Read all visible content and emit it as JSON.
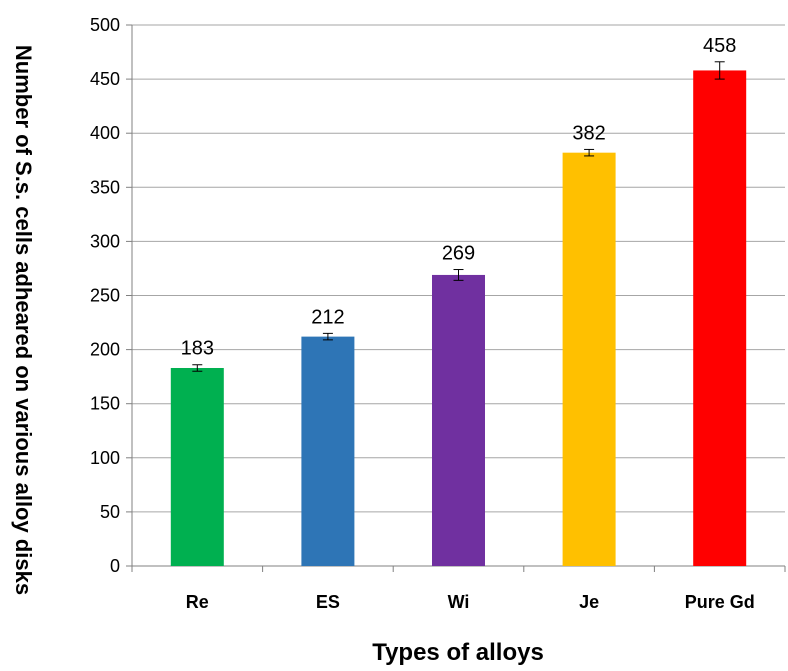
{
  "chart_data": {
    "type": "bar",
    "title": "",
    "xlabel": "Types of alloys",
    "ylabel": "Number of S.s. cells adheared on various  alloy disks",
    "categories": [
      "Re",
      "ES",
      "Wi",
      "Je",
      "Pure Gd"
    ],
    "values": [
      183,
      212,
      269,
      382,
      458
    ],
    "data_labels": [
      "183",
      "212",
      "269",
      "382",
      "458"
    ],
    "error": [
      3,
      3,
      5,
      3,
      8
    ],
    "colors": [
      "#00b050",
      "#2e75b6",
      "#7030a0",
      "#ffc000",
      "#ff0000"
    ],
    "ylim": [
      0,
      500
    ],
    "yticks": [
      0,
      50,
      100,
      150,
      200,
      250,
      300,
      350,
      400,
      450,
      500
    ],
    "ytick_labels": [
      "0",
      "50",
      "100",
      "150",
      "200",
      "250",
      "300",
      "350",
      "400",
      "450",
      "500"
    ],
    "grid": true,
    "legend": "none"
  }
}
